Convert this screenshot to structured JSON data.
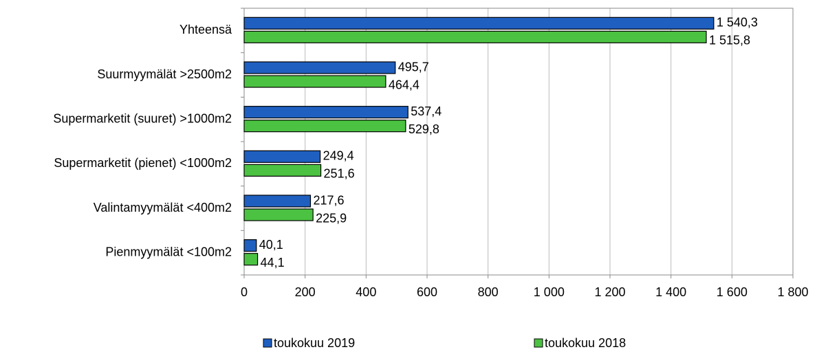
{
  "chart_data": {
    "type": "barh",
    "categories": [
      "Yhteensä",
      "Suurmyymälät >2500m2",
      "Supermarketit (suuret) >1000m2",
      "Supermarketit (pienet) <1000m2",
      "Valintamyymälät <400m2",
      "Pienmyymälät <100m2"
    ],
    "series": [
      {
        "name": "toukokuu 2019",
        "color": "#1f5fc0",
        "values": [
          1540.3,
          495.7,
          537.4,
          249.4,
          217.6,
          40.1
        ],
        "value_labels": [
          "1 540,3",
          "495,7",
          "537,4",
          "249,4",
          "217,6",
          "40,1"
        ]
      },
      {
        "name": "toukokuu 2018",
        "color": "#4cc242",
        "values": [
          1515.8,
          464.4,
          529.8,
          251.6,
          225.9,
          44.1
        ],
        "value_labels": [
          "1 515,8",
          "464,4",
          "529,8",
          "251,6",
          "225,9",
          "44,1"
        ]
      }
    ],
    "xlim": [
      0,
      1800
    ],
    "xticks": [
      0,
      200,
      400,
      600,
      800,
      {
        "value": 1000,
        "label": "1 000"
      },
      {
        "value": 1200,
        "label": "1 200"
      },
      {
        "value": 1400,
        "label": "1 400"
      },
      {
        "value": 1600,
        "label": "1 600"
      },
      {
        "value": 1800,
        "label": "1 800"
      }
    ],
    "grid": true
  }
}
